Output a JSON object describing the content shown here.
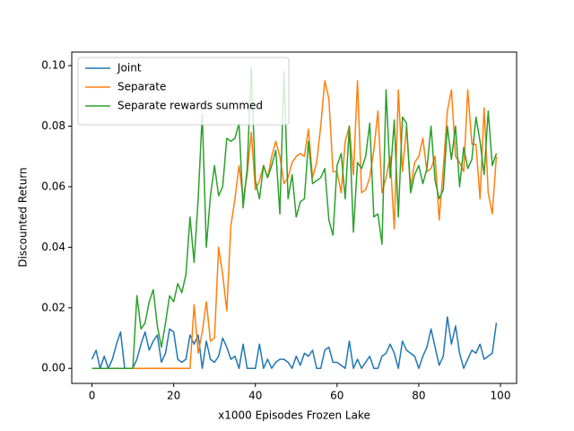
{
  "chart_data": {
    "type": "line",
    "xlabel": "x1000 Episodes Frozen Lake",
    "ylabel": "Discounted Return",
    "x": [
      0,
      1,
      2,
      3,
      4,
      5,
      6,
      7,
      8,
      9,
      10,
      11,
      12,
      13,
      14,
      15,
      16,
      17,
      18,
      19,
      20,
      21,
      22,
      23,
      24,
      25,
      26,
      27,
      28,
      29,
      30,
      31,
      32,
      33,
      34,
      35,
      36,
      37,
      38,
      39,
      40,
      41,
      42,
      43,
      44,
      45,
      46,
      47,
      48,
      49,
      50,
      51,
      52,
      53,
      54,
      55,
      56,
      57,
      58,
      59,
      60,
      61,
      62,
      63,
      64,
      65,
      66,
      67,
      68,
      69,
      70,
      71,
      72,
      73,
      74,
      75,
      76,
      77,
      78,
      79,
      80,
      81,
      82,
      83,
      84,
      85,
      86,
      87,
      88,
      89,
      90,
      91,
      92,
      93,
      94,
      95,
      96,
      97,
      98,
      99
    ],
    "series": [
      {
        "name": "Joint",
        "color": "#1f77b4",
        "values": [
          0.003,
          0.006,
          0.0,
          0.004,
          0.0,
          0.003,
          0.008,
          0.012,
          0.0,
          0.0,
          0.0,
          0.003,
          0.008,
          0.012,
          0.006,
          0.009,
          0.011,
          0.002,
          0.005,
          0.013,
          0.012,
          0.003,
          0.002,
          0.003,
          0.011,
          0.008,
          0.011,
          0.0,
          0.009,
          0.003,
          0.002,
          0.004,
          0.01,
          0.007,
          0.003,
          0.004,
          0.0,
          0.008,
          0.0,
          0.0,
          0.0,
          0.008,
          0.0,
          0.003,
          0.0,
          0.002,
          0.003,
          0.003,
          0.002,
          0.0,
          0.004,
          0.001,
          0.005,
          0.004,
          0.006,
          0.0,
          0.0,
          0.006,
          0.007,
          0.002,
          0.002,
          0.001,
          0.0,
          0.009,
          0.0,
          0.003,
          0.0,
          0.002,
          0.004,
          0.0,
          0.0,
          0.004,
          0.005,
          0.008,
          0.005,
          0.0,
          0.009,
          0.006,
          0.005,
          0.004,
          0.0,
          0.004,
          0.007,
          0.013,
          0.007,
          0.001,
          0.004,
          0.017,
          0.008,
          0.014,
          0.005,
          0.0,
          0.003,
          0.006,
          0.005,
          0.008,
          0.003,
          0.004,
          0.005,
          0.015
        ]
      },
      {
        "name": "Separate",
        "color": "#ff7f0e",
        "values": [
          0,
          0,
          0,
          0,
          0,
          0,
          0,
          0,
          0,
          0,
          0,
          0,
          0,
          0,
          0,
          0,
          0,
          0,
          0,
          0,
          0,
          0,
          0,
          0,
          0,
          0.021,
          0.005,
          0.012,
          0.022,
          0.009,
          0.01,
          0.04,
          0.031,
          0.019,
          0.047,
          0.056,
          0.067,
          0.056,
          0.064,
          0.078,
          0.059,
          0.062,
          0.067,
          0.063,
          0.07,
          0.075,
          0.07,
          0.061,
          0.063,
          0.068,
          0.07,
          0.071,
          0.07,
          0.079,
          0.063,
          0.068,
          0.08,
          0.095,
          0.089,
          0.065,
          0.065,
          0.058,
          0.075,
          0.08,
          0.064,
          0.095,
          0.058,
          0.059,
          0.063,
          0.072,
          0.085,
          0.058,
          0.063,
          0.07,
          0.046,
          0.092,
          0.065,
          0.08,
          0.06,
          0.068,
          0.07,
          0.076,
          0.065,
          0.066,
          0.07,
          0.049,
          0.066,
          0.085,
          0.092,
          0.07,
          0.068,
          0.065,
          0.092,
          0.074,
          0.074,
          0.056,
          0.086,
          0.058,
          0.051,
          0.07
        ]
      },
      {
        "name": "Separate rewards summed",
        "color": "#2ca02c",
        "values": [
          0,
          0,
          0,
          0,
          0,
          0,
          0,
          0,
          0,
          0,
          0,
          0.024,
          0.013,
          0.015,
          0.022,
          0.026,
          0.014,
          0.007,
          0.015,
          0.024,
          0.022,
          0.028,
          0.025,
          0.031,
          0.05,
          0.035,
          0.056,
          0.084,
          0.04,
          0.057,
          0.067,
          0.057,
          0.06,
          0.076,
          0.075,
          0.076,
          0.081,
          0.053,
          0.066,
          0.0995,
          0.062,
          0.056,
          0.067,
          0.063,
          0.067,
          0.072,
          0.051,
          0.098,
          0.056,
          0.064,
          0.05,
          0.055,
          0.056,
          0.075,
          0.061,
          0.062,
          0.063,
          0.066,
          0.049,
          0.044,
          0.067,
          0.071,
          0.056,
          0.08,
          0.045,
          0.068,
          0.066,
          0.07,
          0.081,
          0.05,
          0.051,
          0.041,
          0.092,
          0.063,
          0.082,
          0.05,
          0.083,
          0.081,
          0.058,
          0.064,
          0.067,
          0.061,
          0.066,
          0.08,
          0.062,
          0.056,
          0.059,
          0.08,
          0.069,
          0.08,
          0.06,
          0.073,
          0.066,
          0.069,
          0.083,
          0.075,
          0.064,
          0.085,
          0.067,
          0.071
        ]
      }
    ],
    "xlim": [
      -4.95,
      103.95
    ],
    "xticks": [
      0,
      20,
      40,
      60,
      80,
      100
    ],
    "ylim": [
      -0.004975,
      0.104475
    ],
    "yticks": [
      {
        "value": 0,
        "label": "0.00"
      },
      {
        "value": 0.02,
        "label": "0.02"
      },
      {
        "value": 0.04,
        "label": "0.04"
      },
      {
        "value": 0.06,
        "label": "0.06"
      },
      {
        "value": 0.08,
        "label": "0.08"
      },
      {
        "value": 0.1,
        "label": "0.10"
      }
    ],
    "legend": "upper left"
  }
}
